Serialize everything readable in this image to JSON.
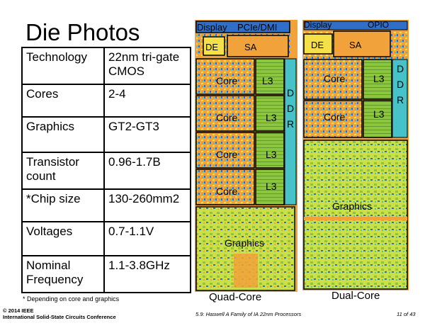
{
  "slide": {
    "title": "Die Photos",
    "specs": [
      {
        "key": "Technology",
        "value": "22nm tri-gate CMOS"
      },
      {
        "key": "Cores",
        "value": "2-4"
      },
      {
        "key": "Graphics",
        "value": "GT2-GT3"
      },
      {
        "key": "Transistor count",
        "value": "0.96-1.7B"
      },
      {
        "key": "*Chip size",
        "value": "130-260mm2"
      },
      {
        "key": "Voltages",
        "value": "0.7-1.1V"
      },
      {
        "key": "Nominal Frequency",
        "value": "1.1-3.8GHz"
      }
    ],
    "footnote": "* Depending on core and graphics",
    "copyright_line1": "© 2014 IEEE",
    "copyright_line2": "International Solid-State Circuits Conference",
    "center_footer": "5.9: Haswell A Family of IA 22nm Processors",
    "page_indicator": "11 of 43"
  },
  "quad_die": {
    "top_labels": [
      "Display",
      "PCIe/DMI"
    ],
    "de": "DE",
    "sa": "SA",
    "core": "Core",
    "l3": "L3",
    "ddr": [
      "D",
      "D",
      "R"
    ],
    "graphics": "Graphics",
    "caption": "Quad-Core"
  },
  "dual_die": {
    "top_labels": [
      "Display",
      "OPIO"
    ],
    "de": "DE",
    "sa": "SA",
    "core": "Core",
    "l3": "L3",
    "ddr": [
      "D",
      "D",
      "R"
    ],
    "graphics": "Graphics",
    "caption": "Dual-Core"
  },
  "colors": {
    "die_orange": "#f2a23a",
    "die_yellow": "#f5e04a",
    "die_green": "#8cc63f",
    "die_blue": "#2f6fc9",
    "die_cyan": "#47c2c9"
  }
}
